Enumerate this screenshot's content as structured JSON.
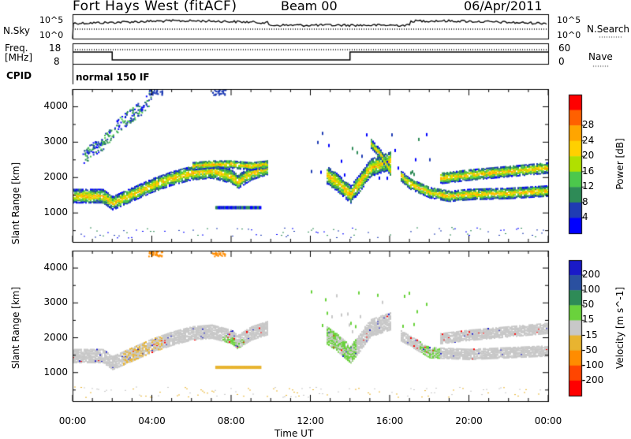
{
  "header": {
    "title": "Fort Hays West (fitACF)",
    "beam": "Beam 00",
    "date": "06/Apr/2011"
  },
  "noise_panel": {
    "left_label": "N.Sky",
    "right_label": "N.Search",
    "left_ticks": [
      "10^5",
      "10^0"
    ],
    "right_ticks": [
      "10^5",
      "10^0"
    ]
  },
  "freq_panel": {
    "left_label_1": "Freq.",
    "left_label_2": "[MHz]",
    "right_label": "Nave",
    "left_ticks": [
      "18",
      "8"
    ],
    "right_ticks": [
      "60",
      "0"
    ]
  },
  "cpid": {
    "label": "CPID",
    "value": "normal 150 IF"
  },
  "colors": {
    "power": [
      "#0000ff",
      "#1f3cb4",
      "#2e8b57",
      "#4cc84c",
      "#b0e000",
      "#ffd000",
      "#ffa500",
      "#ff6000",
      "#ff0000"
    ],
    "velocity": [
      "#1a1ac8",
      "#2a50a0",
      "#2e8b57",
      "#6ad23c",
      "#c8c8c8",
      "#e8b430",
      "#ff8c00",
      "#ff4500",
      "#ff0000"
    ]
  },
  "chart_data": [
    {
      "type": "heatmap",
      "title": "Power",
      "xlabel": "Time UT",
      "ylabel": "Slant Range [km]",
      "x_ticks": [
        "00:00",
        "04:00",
        "08:00",
        "12:00",
        "16:00",
        "20:00",
        "00:00"
      ],
      "xlim_hours": [
        0,
        24
      ],
      "y_ticks": [
        1000,
        2000,
        3000,
        4000
      ],
      "ylim": [
        180,
        4500
      ],
      "colorbar": {
        "label": "Power [dB]",
        "ticks": [
          "4",
          "8",
          "12",
          "16",
          "20",
          "24",
          "28"
        ],
        "range": [
          0,
          30
        ]
      },
      "echo_bands": [
        {
          "name": "main",
          "points": [
            [
              0.0,
              1500
            ],
            [
              1.0,
              1500
            ],
            [
              1.5,
              1500
            ],
            [
              2.0,
              1300
            ],
            [
              3.0,
              1550
            ],
            [
              4.0,
              1800
            ],
            [
              5.0,
              2000
            ],
            [
              6.0,
              2150
            ],
            [
              7.0,
              2200
            ],
            [
              8.0,
              2050
            ],
            [
              8.3,
              1900
            ],
            [
              9.0,
              2150
            ],
            [
              9.8,
              2300
            ]
          ],
          "width": 380
        },
        {
          "name": "upper",
          "points": [
            [
              6.0,
              2350
            ],
            [
              7.0,
              2400
            ],
            [
              8.0,
              2400
            ],
            [
              9.0,
              2350
            ],
            [
              9.8,
              2400
            ]
          ],
          "width": 220
        },
        {
          "name": "afternoon",
          "points": [
            [
              16.5,
              2100
            ],
            [
              17.0,
              1850
            ],
            [
              18.0,
              1600
            ],
            [
              19.0,
              1500
            ],
            [
              20.0,
              1550
            ],
            [
              22.0,
              1580
            ],
            [
              24.0,
              1650
            ]
          ],
          "width": 300
        },
        {
          "name": "afternoon-upper",
          "points": [
            [
              18.5,
              2000
            ],
            [
              20.0,
              2100
            ],
            [
              22.0,
              2200
            ],
            [
              24.0,
              2300
            ]
          ],
          "width": 300
        },
        {
          "name": "evening-rise",
          "points": [
            [
              12.8,
              2100
            ],
            [
              13.3,
              1900
            ],
            [
              14.0,
              1550
            ],
            [
              14.5,
              1900
            ],
            [
              15.0,
              2300
            ],
            [
              16.0,
              2500
            ]
          ],
          "width": 500
        },
        {
          "name": "filament",
          "points": [
            [
              15.0,
              3000
            ],
            [
              15.5,
              2700
            ],
            [
              16.0,
              2200
            ]
          ],
          "width": 250
        }
      ],
      "scatter_bands": [
        {
          "name": "morning-high",
          "points": [
            [
              0.5,
              2600
            ],
            [
              1.5,
              3000
            ],
            [
              2.5,
              3600
            ],
            [
              3.5,
              4000
            ],
            [
              4.0,
              4350
            ]
          ],
          "width": 400
        }
      ],
      "isolated_features": [
        {
          "name": "echo-1150",
          "t0": 7.2,
          "t1": 9.5,
          "range": 1150
        }
      ]
    },
    {
      "type": "heatmap",
      "title": "Velocity",
      "xlabel": "Time UT",
      "ylabel": "Slant Range [km]",
      "x_ticks": [
        "00:00",
        "04:00",
        "08:00",
        "12:00",
        "16:00",
        "20:00",
        "00:00"
      ],
      "xlim_hours": [
        0,
        24
      ],
      "y_ticks": [
        1000,
        2000,
        3000,
        4000
      ],
      "ylim": [
        180,
        4500
      ],
      "colorbar": {
        "label": "Velocity [m s^-1]",
        "ticks": [
          "200",
          "100",
          "50",
          "15",
          "-15",
          "-50",
          "-100",
          "-200"
        ],
        "range": [
          -250,
          250
        ]
      },
      "echo_bands": [
        {
          "name": "main",
          "points": [
            [
              0.0,
              1500
            ],
            [
              1.5,
              1500
            ],
            [
              2.0,
              1300
            ],
            [
              3.0,
              1550
            ],
            [
              4.0,
              1800
            ],
            [
              5.0,
              2000
            ],
            [
              6.0,
              2150
            ],
            [
              7.0,
              2200
            ],
            [
              8.0,
              2050
            ],
            [
              8.3,
              1900
            ],
            [
              9.0,
              2150
            ],
            [
              9.8,
              2300
            ]
          ],
          "width": 380
        },
        {
          "name": "afternoon",
          "points": [
            [
              16.5,
              2100
            ],
            [
              18.0,
              1600
            ],
            [
              20.0,
              1550
            ],
            [
              24.0,
              1650
            ]
          ],
          "width": 300
        },
        {
          "name": "afternoon-upper",
          "points": [
            [
              18.5,
              2000
            ],
            [
              20.0,
              2100
            ],
            [
              24.0,
              2300
            ]
          ],
          "width": 300
        },
        {
          "name": "evening-rise",
          "points": [
            [
              12.8,
              2100
            ],
            [
              13.3,
              1900
            ],
            [
              14.0,
              1550
            ],
            [
              14.5,
              1900
            ],
            [
              15.0,
              2300
            ],
            [
              16.0,
              2500
            ]
          ],
          "width": 500
        }
      ],
      "isolated_features": [
        {
          "name": "echo-1150",
          "t0": 7.2,
          "t1": 9.5,
          "range": 1150
        }
      ]
    }
  ]
}
